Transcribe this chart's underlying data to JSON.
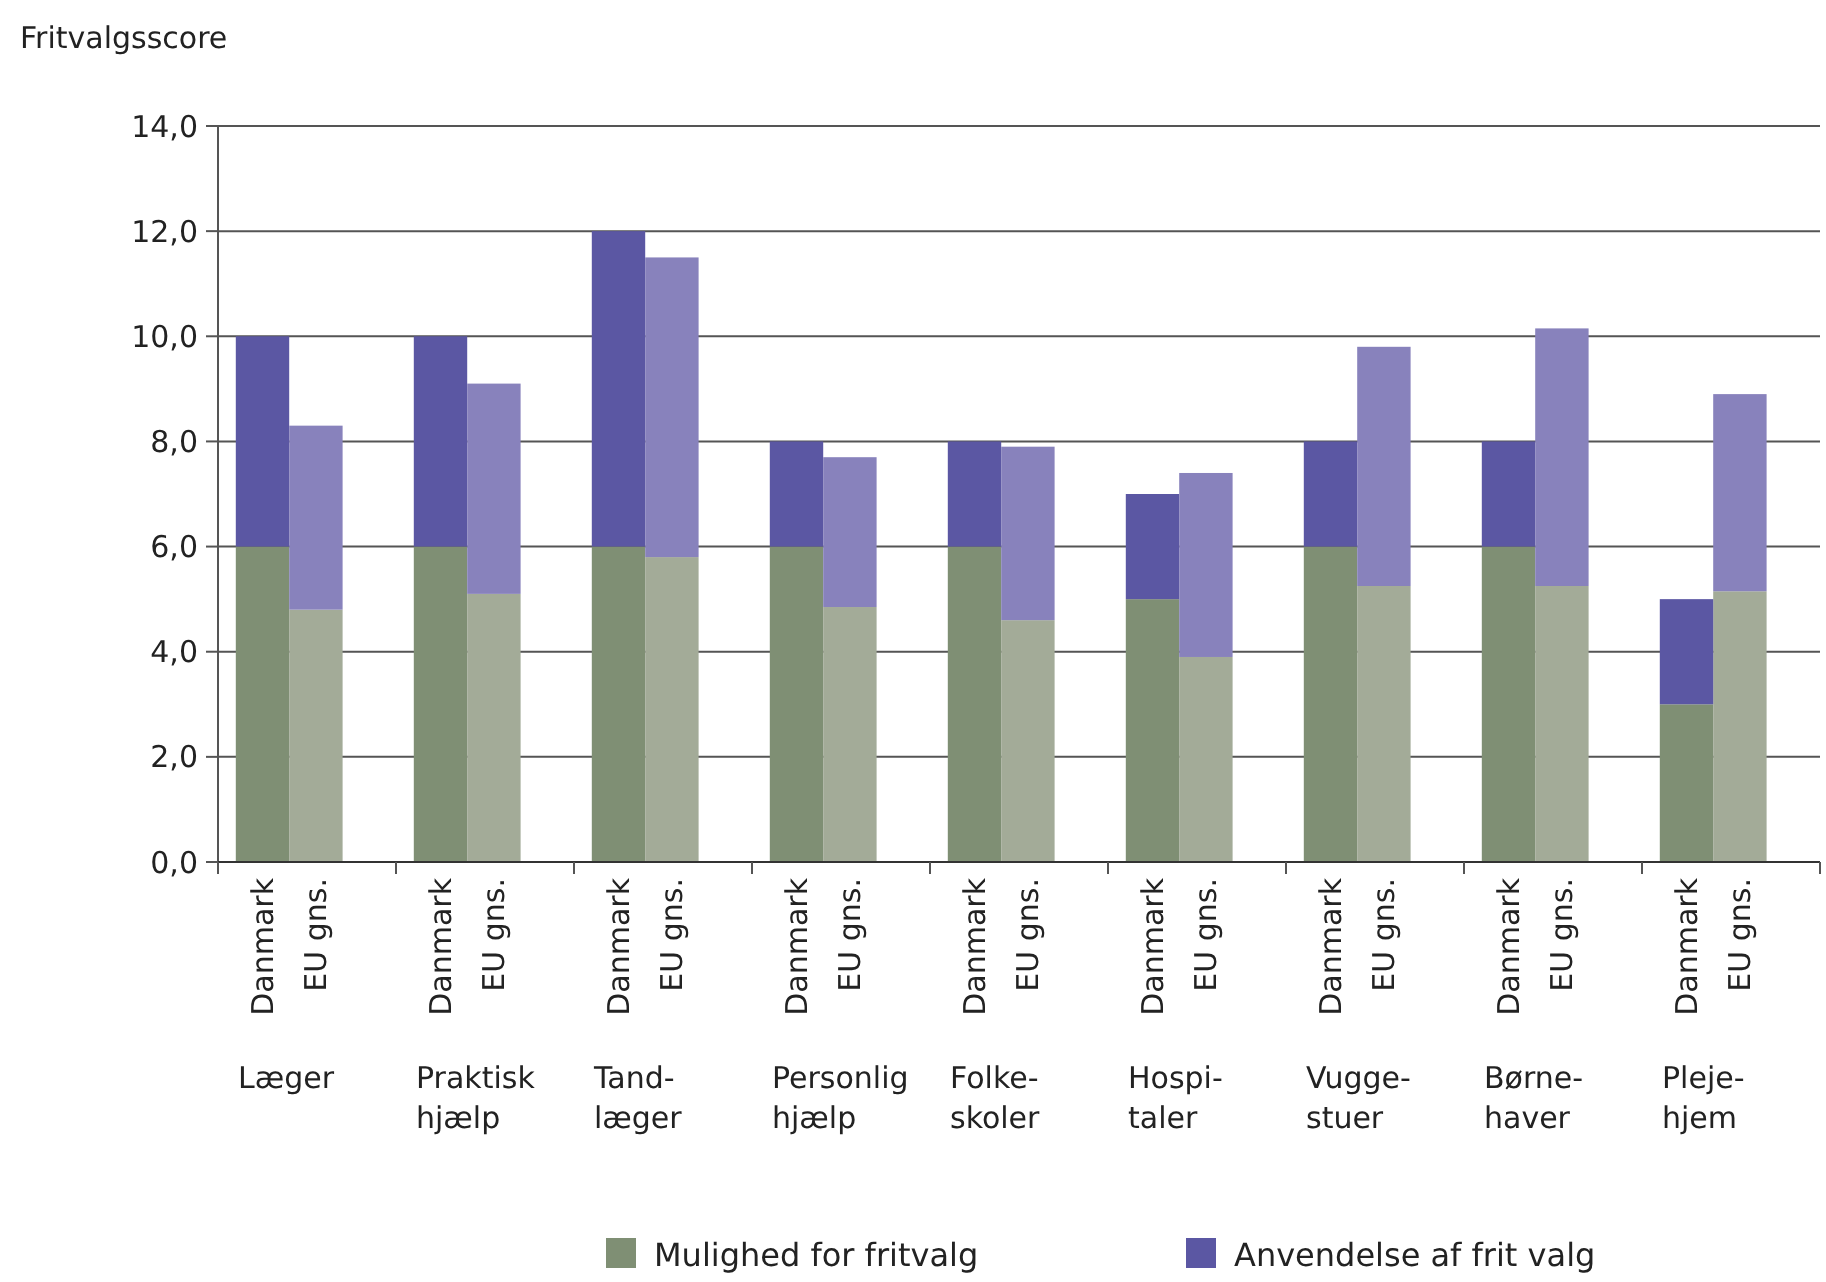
{
  "chart_data": {
    "type": "bar",
    "stacked": true,
    "ylabel": "Fritvalgsscore",
    "categories": [
      "Danmark",
      "EU gns.",
      "Danmark",
      "EU gns.",
      "Danmark",
      "EU gns.",
      "Danmark",
      "EU gns.",
      "Danmark",
      "EU gns.",
      "Danmark",
      "EU gns.",
      "Danmark",
      "EU gns.",
      "Danmark",
      "EU gns.",
      "Danmark",
      "EU gns."
    ],
    "series": [
      {
        "name": "Mulighed for fritvalg",
        "color": "#7f8f74",
        "colors": [
          "#7f8f74",
          "#a3ab98",
          "#7f8f74",
          "#a3ab98",
          "#7f8f74",
          "#a3ab98",
          "#7f8f74",
          "#a3ab98",
          "#7f8f74",
          "#a3ab98",
          "#7f8f74",
          "#a3ab98",
          "#7f8f74",
          "#a3ab98",
          "#7f8f74",
          "#a3ab98",
          "#7f8f74",
          "#a3ab98"
        ],
        "values": [
          6,
          4.8,
          6,
          5.1,
          6,
          5.8,
          6,
          4.85,
          6,
          4.6,
          5,
          3.9,
          6,
          5.25,
          6,
          5.25,
          3,
          5.15
        ]
      },
      {
        "name": "Anvendelse af frit valg",
        "color": "#5b57a3",
        "colors": [
          "#5b57a3",
          "#8882bc",
          "#5b57a3",
          "#8882bc",
          "#5b57a3",
          "#8882bc",
          "#5b57a3",
          "#8882bc",
          "#5b57a3",
          "#8882bc",
          "#5b57a3",
          "#8882bc",
          "#5b57a3",
          "#8882bc",
          "#5b57a3",
          "#8882bc",
          "#5b57a3",
          "#8882bc"
        ],
        "values": [
          4,
          3.5,
          4,
          4,
          6,
          5.7,
          2,
          2.85,
          2,
          3.3,
          2,
          3.5,
          2,
          4.55,
          2,
          4.9,
          2,
          3.75
        ]
      }
    ],
    "annotations": [
      "Læger",
      "Praktisk\nhjælp",
      "Tand-\nlæger",
      "Personlig\nhjælp",
      "Folke-\nskoler",
      "Hospi-\ntaler",
      "Vugge-\nstuer",
      "Børne-\nhaver",
      "Pleje-\nhjem"
    ],
    "ylim": [
      0,
      14
    ],
    "yticks": [
      {
        "value": 0,
        "label": "0,0"
      },
      {
        "value": 2,
        "label": "2,0"
      },
      {
        "value": 4,
        "label": "4,0"
      },
      {
        "value": 6,
        "label": "6,0"
      },
      {
        "value": 8,
        "label": "8,0"
      },
      {
        "value": 10,
        "label": "10,0"
      },
      {
        "value": 12,
        "label": "12,0"
      },
      {
        "value": 14,
        "label": "14,0"
      }
    ],
    "grid": "y",
    "legend": "bottom right"
  }
}
